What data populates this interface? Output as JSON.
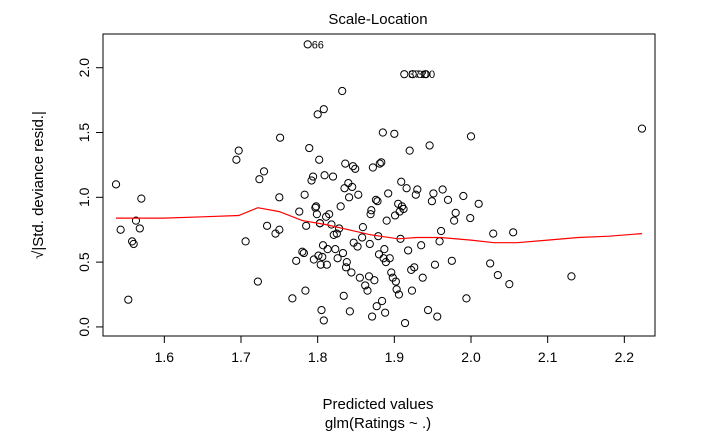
{
  "chart_data": {
    "type": "scatter",
    "title": "Scale-Location",
    "xlabel": "Predicted values",
    "xlabel_sub": "glm(Ratings ~ .)",
    "ylabel": "√|Std. deviance resid.|",
    "xlim": [
      1.52,
      2.24
    ],
    "ylim": [
      -0.07,
      2.26
    ],
    "x_ticks": [
      1.6,
      1.7,
      1.8,
      1.9,
      2.0,
      2.1,
      2.2
    ],
    "x_tick_labels": [
      "1.6",
      "1.7",
      "1.8",
      "1.9",
      "2.0",
      "2.1",
      "2.2"
    ],
    "y_ticks": [
      0.0,
      0.5,
      1.0,
      1.5,
      2.0
    ],
    "y_tick_labels": [
      "0.0",
      "0.5",
      "1.0",
      "1.5",
      "2.0"
    ],
    "points": [
      [
        1.537,
        1.1
      ],
      [
        1.543,
        0.75
      ],
      [
        1.553,
        0.21
      ],
      [
        1.558,
        0.66
      ],
      [
        1.56,
        0.64
      ],
      [
        1.563,
        0.82
      ],
      [
        1.568,
        0.76
      ],
      [
        1.57,
        0.99
      ],
      [
        1.694,
        1.29
      ],
      [
        1.697,
        1.36
      ],
      [
        1.706,
        0.66
      ],
      [
        1.722,
        0.35
      ],
      [
        1.724,
        1.14
      ],
      [
        1.73,
        1.2
      ],
      [
        1.734,
        0.78
      ],
      [
        1.745,
        0.72
      ],
      [
        1.75,
        0.75
      ],
      [
        1.75,
        1.0
      ],
      [
        1.751,
        1.46
      ],
      [
        1.767,
        0.22
      ],
      [
        1.772,
        0.51
      ],
      [
        1.776,
        0.89
      ],
      [
        1.78,
        0.58
      ],
      [
        1.782,
        0.57
      ],
      [
        1.783,
        1.02
      ],
      [
        1.784,
        0.28
      ],
      [
        1.785,
        0.78
      ],
      [
        1.787,
        2.18
      ],
      [
        1.789,
        1.38
      ],
      [
        1.792,
        1.13
      ],
      [
        1.794,
        1.16
      ],
      [
        1.795,
        0.52
      ],
      [
        1.797,
        0.92
      ],
      [
        1.798,
        0.93
      ],
      [
        1.799,
        0.87
      ],
      [
        1.8,
        1.64
      ],
      [
        1.801,
        0.55
      ],
      [
        1.802,
        1.29
      ],
      [
        1.803,
        0.8
      ],
      [
        1.803,
        0.8
      ],
      [
        1.804,
        0.48
      ],
      [
        1.805,
        0.13
      ],
      [
        1.806,
        0.54
      ],
      [
        1.807,
        0.63
      ],
      [
        1.808,
        0.05
      ],
      [
        1.808,
        1.68
      ],
      [
        1.809,
        1.17
      ],
      [
        1.811,
        0.85
      ],
      [
        1.812,
        0.48
      ],
      [
        1.813,
        0.6
      ],
      [
        1.815,
        0.87
      ],
      [
        1.818,
        0.79
      ],
      [
        1.82,
        1.16
      ],
      [
        1.821,
        0.71
      ],
      [
        1.823,
        0.6
      ],
      [
        1.825,
        0.72
      ],
      [
        1.826,
        0.53
      ],
      [
        1.828,
        0.76
      ],
      [
        1.83,
        0.93
      ],
      [
        1.832,
        1.82
      ],
      [
        1.833,
        0.57
      ],
      [
        1.834,
        0.24
      ],
      [
        1.835,
        1.07
      ],
      [
        1.836,
        1.26
      ],
      [
        1.837,
        0.46
      ],
      [
        1.838,
        0.5
      ],
      [
        1.84,
        1.11
      ],
      [
        1.841,
        1.0
      ],
      [
        1.842,
        0.12
      ],
      [
        1.844,
        0.42
      ],
      [
        1.845,
        1.08
      ],
      [
        1.846,
        1.24
      ],
      [
        1.847,
        0.65
      ],
      [
        1.849,
        1.22
      ],
      [
        1.852,
        0.62
      ],
      [
        1.853,
        1.02
      ],
      [
        1.855,
        0.38
      ],
      [
        1.858,
        0.69
      ],
      [
        1.859,
        0.77
      ],
      [
        1.862,
        0.32
      ],
      [
        1.865,
        0.28
      ],
      [
        1.867,
        0.39
      ],
      [
        1.868,
        0.64
      ],
      [
        1.869,
        0.87
      ],
      [
        1.87,
        0.9
      ],
      [
        1.871,
        0.08
      ],
      [
        1.872,
        1.23
      ],
      [
        1.874,
        0.36
      ],
      [
        1.876,
        0.98
      ],
      [
        1.877,
        0.16
      ],
      [
        1.878,
        0.97
      ],
      [
        1.879,
        0.7
      ],
      [
        1.88,
        0.56
      ],
      [
        1.881,
        1.26
      ],
      [
        1.883,
        1.27
      ],
      [
        1.884,
        0.2
      ],
      [
        1.885,
        1.5
      ],
      [
        1.886,
        0.53
      ],
      [
        1.887,
        0.6
      ],
      [
        1.888,
        0.11
      ],
      [
        1.889,
        0.5
      ],
      [
        1.89,
        0.82
      ],
      [
        1.892,
        1.03
      ],
      [
        1.894,
        0.53
      ],
      [
        1.896,
        0.42
      ],
      [
        1.898,
        0.38
      ],
      [
        1.9,
        1.49
      ],
      [
        1.901,
        0.86
      ],
      [
        1.902,
        0.35
      ],
      [
        1.903,
        0.29
      ],
      [
        1.905,
        0.95
      ],
      [
        1.906,
        0.25
      ],
      [
        1.907,
        0.89
      ],
      [
        1.908,
        0.68
      ],
      [
        1.909,
        1.12
      ],
      [
        1.91,
        0.93
      ],
      [
        1.912,
        0.91
      ],
      [
        1.913,
        1.95
      ],
      [
        1.914,
        0.03
      ],
      [
        1.916,
        1.07
      ],
      [
        1.918,
        0.59
      ],
      [
        1.92,
        1.36
      ],
      [
        1.922,
        0.44
      ],
      [
        1.923,
        0.28
      ],
      [
        1.924,
        1.95
      ],
      [
        1.926,
        0.46
      ],
      [
        1.928,
        1.02
      ],
      [
        1.93,
        1.06
      ],
      [
        1.935,
        0.63
      ],
      [
        1.937,
        0.38
      ],
      [
        1.941,
        1.95
      ],
      [
        1.944,
        0.13
      ],
      [
        1.946,
        1.4
      ],
      [
        1.949,
        0.97
      ],
      [
        1.951,
        1.03
      ],
      [
        1.953,
        0.48
      ],
      [
        1.956,
        0.08
      ],
      [
        1.959,
        0.66
      ],
      [
        1.961,
        0.74
      ],
      [
        1.963,
        1.06
      ],
      [
        1.97,
        0.98
      ],
      [
        1.975,
        0.51
      ],
      [
        1.978,
        0.82
      ],
      [
        1.98,
        0.88
      ],
      [
        1.99,
        1.01
      ],
      [
        1.994,
        0.22
      ],
      [
        1.999,
        0.84
      ],
      [
        2.0,
        1.47
      ],
      [
        2.01,
        0.95
      ],
      [
        2.025,
        0.49
      ],
      [
        2.029,
        0.72
      ],
      [
        2.035,
        0.4
      ],
      [
        2.05,
        0.33
      ],
      [
        2.055,
        0.73
      ],
      [
        2.131,
        0.39
      ],
      [
        2.223,
        1.53
      ]
    ],
    "annotations": [
      {
        "label": "66",
        "x": 1.787,
        "y": 2.18
      },
      {
        "label": "372",
        "x": 1.913,
        "y": 1.95
      },
      {
        "label": "300",
        "x": 1.924,
        "y": 1.95
      }
    ],
    "smooth_line": [
      [
        1.537,
        0.84
      ],
      [
        1.6,
        0.84
      ],
      [
        1.65,
        0.85
      ],
      [
        1.697,
        0.86
      ],
      [
        1.722,
        0.92
      ],
      [
        1.75,
        0.89
      ],
      [
        1.78,
        0.82
      ],
      [
        1.81,
        0.79
      ],
      [
        1.84,
        0.75
      ],
      [
        1.87,
        0.71
      ],
      [
        1.905,
        0.68
      ],
      [
        1.93,
        0.69
      ],
      [
        1.96,
        0.69
      ],
      [
        2.0,
        0.67
      ],
      [
        2.03,
        0.65
      ],
      [
        2.06,
        0.65
      ],
      [
        2.1,
        0.67
      ],
      [
        2.14,
        0.69
      ],
      [
        2.18,
        0.7
      ],
      [
        2.223,
        0.72
      ]
    ],
    "smooth_color": "#ff0000",
    "point_color": "#000000"
  }
}
